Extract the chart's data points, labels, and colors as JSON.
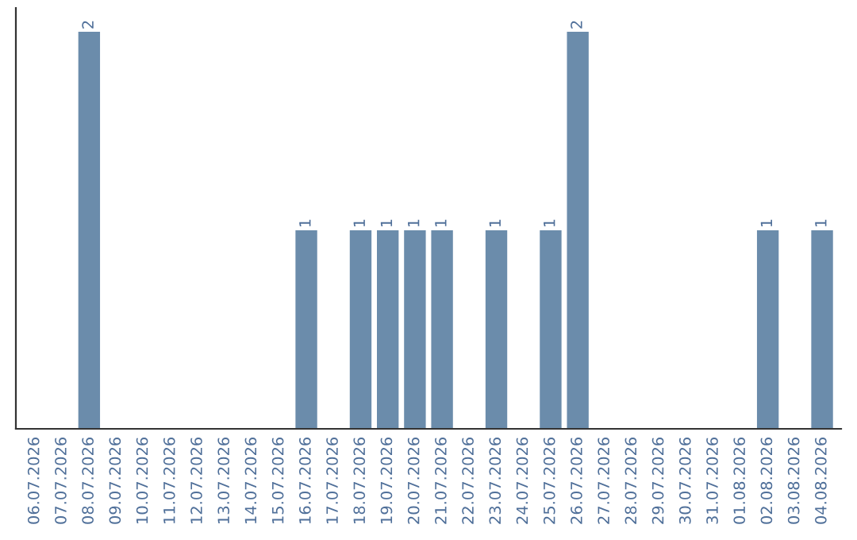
{
  "chart_data": {
    "type": "bar",
    "categories": [
      "06.07.2026",
      "07.07.2026",
      "08.07.2026",
      "09.07.2026",
      "10.07.2026",
      "11.07.2026",
      "12.07.2026",
      "13.07.2026",
      "14.07.2026",
      "15.07.2026",
      "16.07.2026",
      "17.07.2026",
      "18.07.2026",
      "19.07.2026",
      "20.07.2026",
      "21.07.2026",
      "22.07.2026",
      "23.07.2026",
      "24.07.2026",
      "25.07.2026",
      "26.07.2026",
      "27.07.2026",
      "28.07.2026",
      "29.07.2026",
      "30.07.2026",
      "31.07.2026",
      "01.08.2026",
      "02.08.2026",
      "03.08.2026",
      "04.08.2026"
    ],
    "values": [
      0,
      0,
      2,
      0,
      0,
      0,
      0,
      0,
      0,
      0,
      1,
      0,
      1,
      1,
      1,
      1,
      0,
      1,
      0,
      1,
      2,
      0,
      0,
      0,
      0,
      0,
      0,
      1,
      0,
      1
    ],
    "value_labels": [
      null,
      null,
      "2",
      null,
      null,
      null,
      null,
      null,
      null,
      null,
      "1",
      null,
      "1",
      "1",
      "1",
      "1",
      null,
      "1",
      null,
      "1",
      "2",
      null,
      null,
      null,
      null,
      null,
      null,
      "1",
      null,
      "1"
    ],
    "color": "#6b8cab",
    "tick_labels": "x",
    "grid": false,
    "legend": false
  }
}
